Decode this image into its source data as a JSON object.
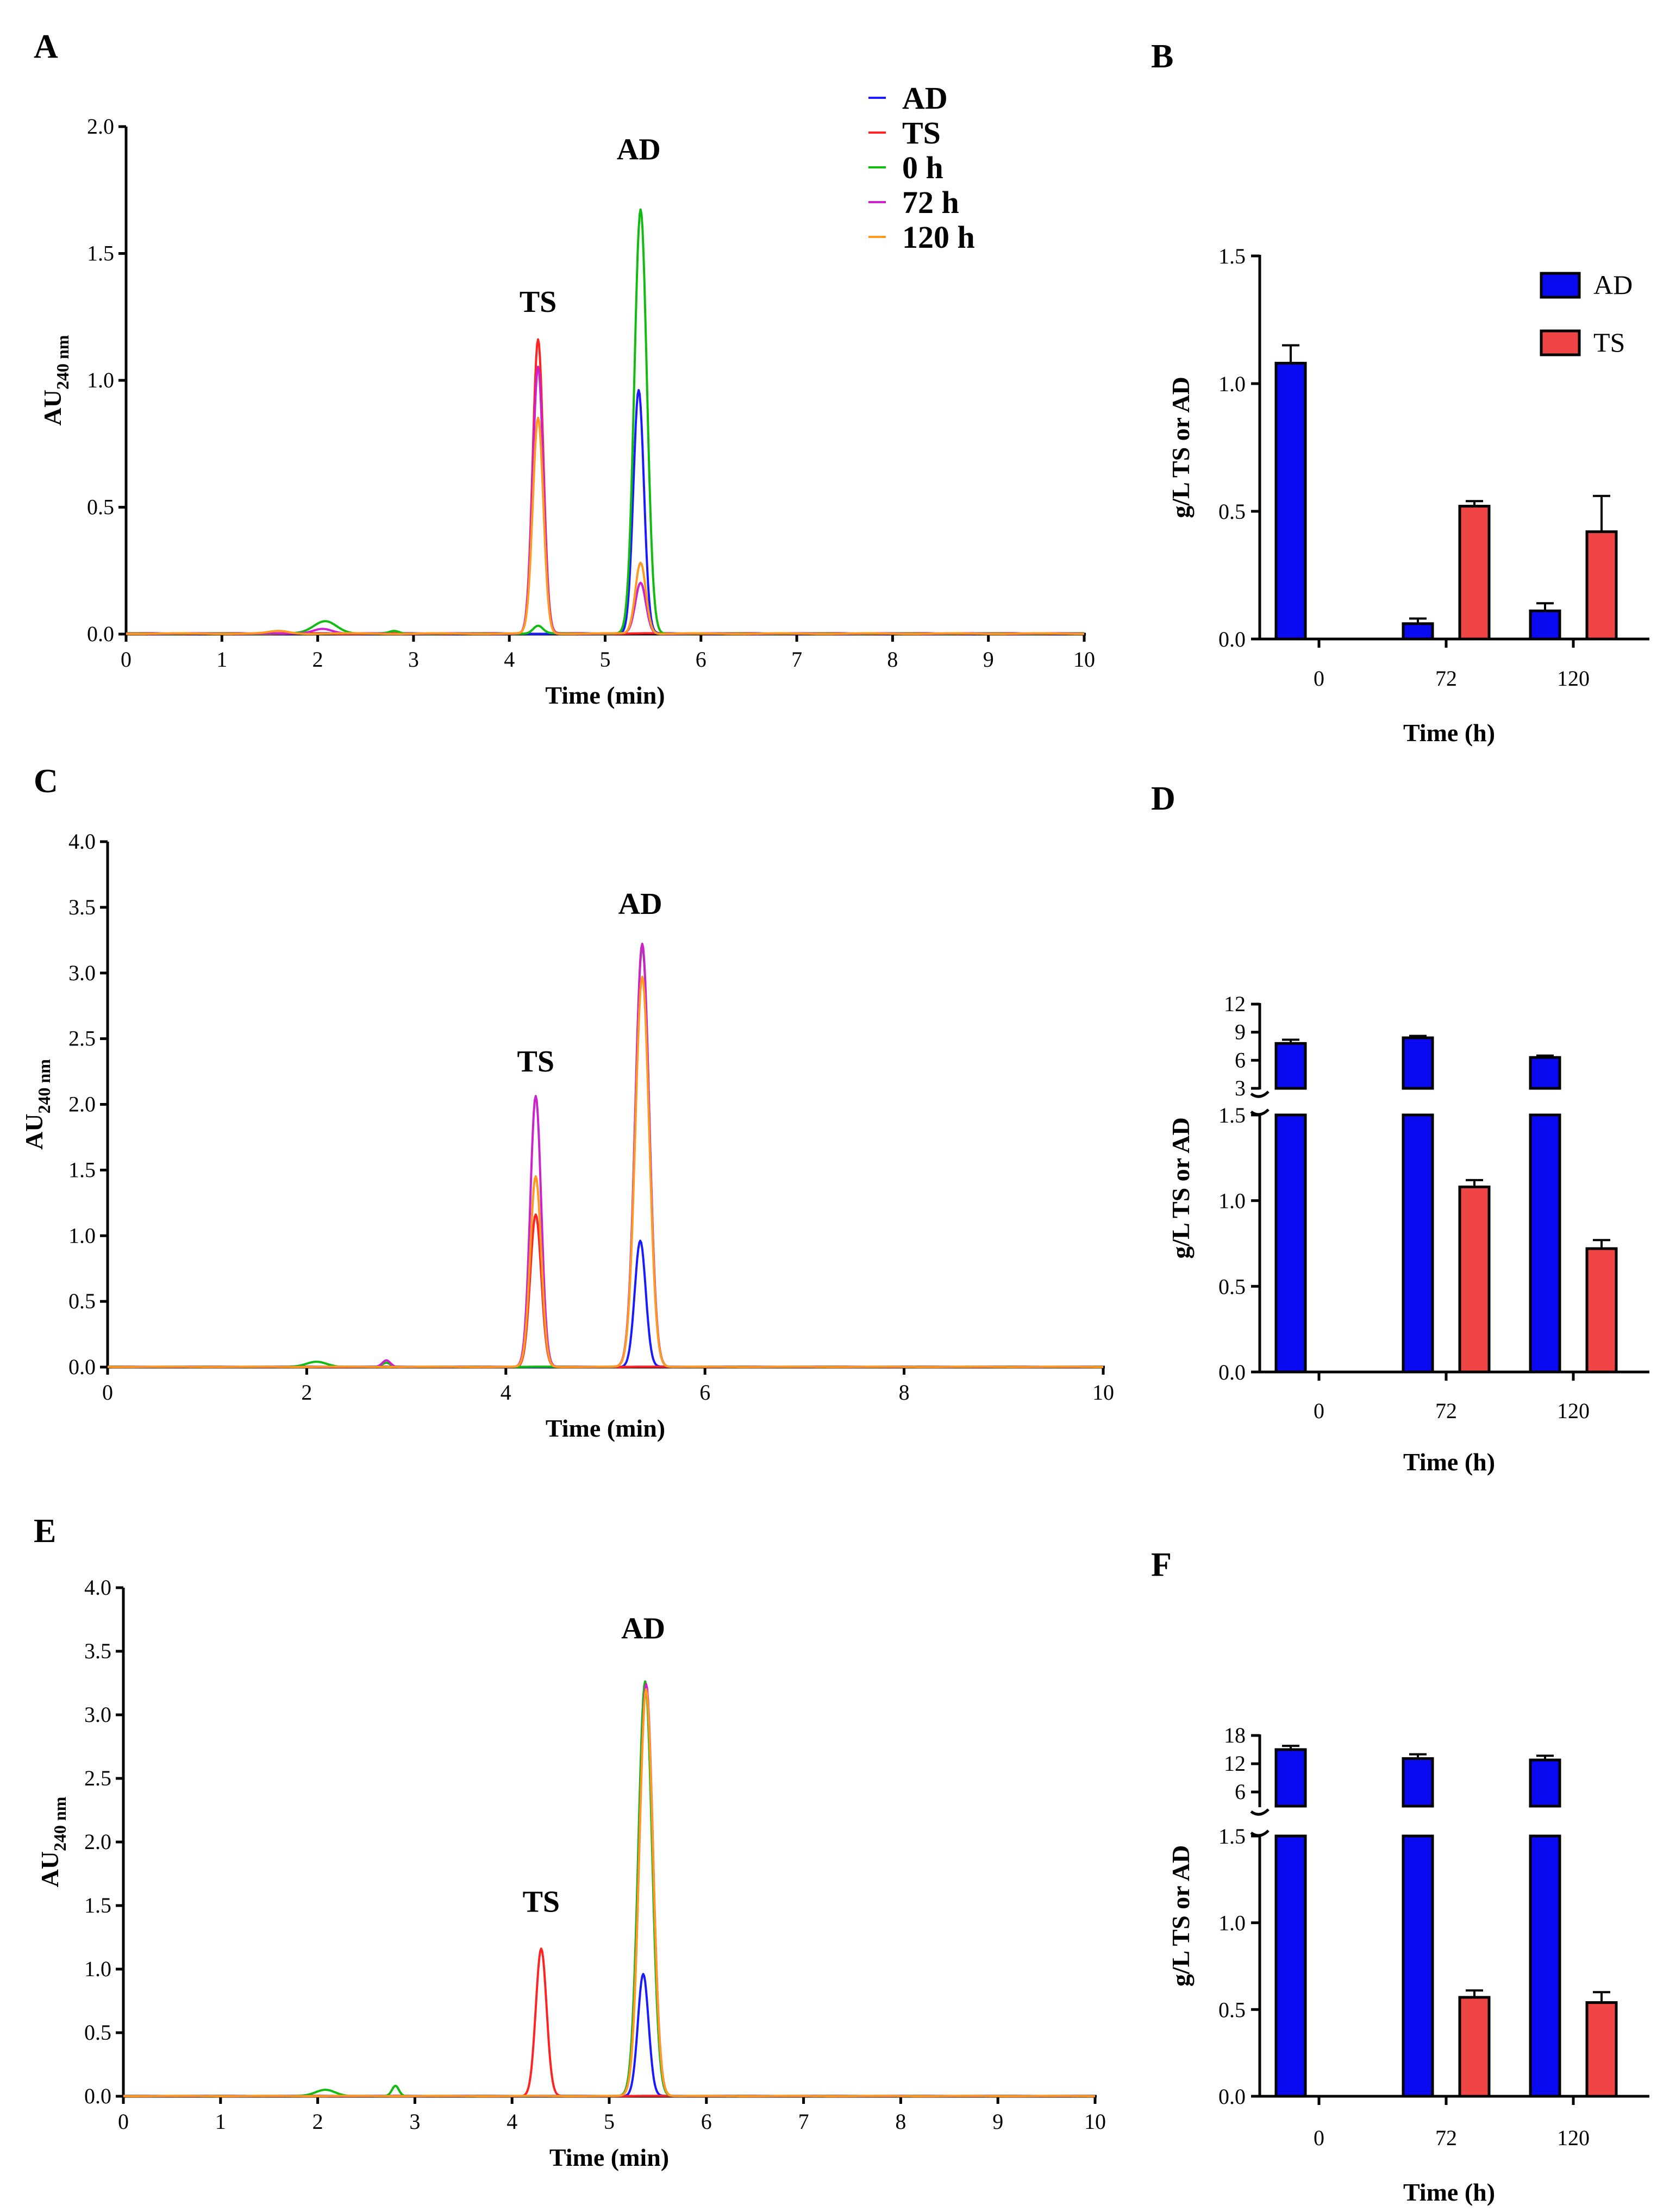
{
  "colors": {
    "AD": "#1a1aff",
    "TS": "#ff2222",
    "h0": "#11bb11",
    "h72": "#cc22cc",
    "h120": "#ff9922",
    "bar_AD": "#0a0af0",
    "bar_TS": "#f04545"
  },
  "chart_data": [
    {
      "panel": "A",
      "type": "line",
      "xlabel": "Time (min)",
      "ylabel": "AU",
      "ylabel_sub": "240 nm",
      "xlim": [
        0,
        10
      ],
      "ylim": [
        0,
        2.0
      ],
      "xticks": [
        "0",
        "1",
        "2",
        "3",
        "4",
        "5",
        "6",
        "7",
        "8",
        "9",
        "10"
      ],
      "yticks": [
        "0.0",
        "0.5",
        "1.0",
        "1.5",
        "2.0"
      ],
      "annotations": [
        {
          "text": "TS",
          "x": 4.3,
          "y": 1.27
        },
        {
          "text": "AD",
          "x": 5.35,
          "y": 1.87
        }
      ],
      "legend": [
        "AD",
        "TS",
        "0 h",
        "72 h",
        "120 h"
      ],
      "series": [
        {
          "name": "AD",
          "color_key": "AD",
          "peaks": [
            [
              5.35,
              0.96,
              0.055
            ]
          ]
        },
        {
          "name": "TS",
          "color_key": "TS",
          "peaks": [
            [
              4.3,
              1.16,
              0.055
            ]
          ]
        },
        {
          "name": "0 h",
          "color_key": "h0",
          "peaks": [
            [
              2.08,
              0.05,
              0.12
            ],
            [
              4.3,
              0.03,
              0.05
            ],
            [
              5.37,
              1.67,
              0.065
            ],
            [
              2.8,
              0.01,
              0.05
            ]
          ]
        },
        {
          "name": "72 h",
          "color_key": "h72",
          "peaks": [
            [
              4.3,
              1.05,
              0.055
            ],
            [
              5.37,
              0.2,
              0.055
            ],
            [
              2.05,
              0.02,
              0.1
            ]
          ]
        },
        {
          "name": "120 h",
          "color_key": "h120",
          "peaks": [
            [
              4.3,
              0.85,
              0.055
            ],
            [
              5.37,
              0.28,
              0.055
            ],
            [
              1.6,
              0.01,
              0.1
            ]
          ]
        }
      ]
    },
    {
      "panel": "B",
      "type": "bar",
      "xlabel": "Time (h)",
      "ylabel": "g/L TS or AD",
      "categories": [
        "0",
        "72",
        "120"
      ],
      "ylim": [
        0,
        1.5
      ],
      "yticks": [
        "0.0",
        "0.5",
        "1.0",
        "1.5"
      ],
      "legend": [
        "AD",
        "TS"
      ],
      "series": [
        {
          "name": "AD",
          "values": [
            1.08,
            0.06,
            0.11
          ],
          "errors": [
            0.07,
            0.02,
            0.03
          ]
        },
        {
          "name": "TS",
          "values": [
            0.0,
            0.52,
            0.42
          ],
          "errors": [
            0.0,
            0.02,
            0.14
          ]
        }
      ]
    },
    {
      "panel": "C",
      "type": "line",
      "xlabel": "Time (min)",
      "ylabel": "AU",
      "ylabel_sub": "240 nm",
      "xlim": [
        0,
        10
      ],
      "ylim": [
        0,
        4.0
      ],
      "xticks": [
        "0",
        "2",
        "4",
        "6",
        "8",
        "10"
      ],
      "yticks": [
        "0.0",
        "0.5",
        "1.0",
        "1.5",
        "2.0",
        "2.5",
        "3.0",
        "3.5",
        "4.0"
      ],
      "annotations": [
        {
          "text": "TS",
          "x": 4.3,
          "y": 2.25
        },
        {
          "text": "AD",
          "x": 5.35,
          "y": 3.45
        }
      ],
      "series": [
        {
          "name": "AD",
          "color_key": "AD",
          "peaks": [
            [
              5.35,
              0.96,
              0.055
            ]
          ]
        },
        {
          "name": "TS",
          "color_key": "TS",
          "peaks": [
            [
              4.3,
              1.16,
              0.055
            ]
          ]
        },
        {
          "name": "0 h",
          "color_key": "h0",
          "peaks": [
            [
              2.1,
              0.04,
              0.1
            ],
            [
              5.37,
              3.2,
              0.07
            ],
            [
              2.8,
              0.03,
              0.04
            ]
          ]
        },
        {
          "name": "72 h",
          "color_key": "h72",
          "peaks": [
            [
              4.3,
              2.06,
              0.055
            ],
            [
              5.37,
              3.22,
              0.07
            ],
            [
              2.8,
              0.05,
              0.04
            ]
          ]
        },
        {
          "name": "120 h",
          "color_key": "h120",
          "peaks": [
            [
              4.3,
              1.45,
              0.055
            ],
            [
              5.37,
              2.97,
              0.07
            ]
          ]
        }
      ]
    },
    {
      "panel": "D",
      "type": "bar",
      "xlabel": "Time (h)",
      "ylabel": "g/L TS or AD",
      "categories": [
        "0",
        "72",
        "120"
      ],
      "ylim_lower": [
        0,
        1.5
      ],
      "ylim_upper": [
        3,
        12
      ],
      "yticks_lower": [
        "0.0",
        "0.5",
        "1.0",
        "1.5"
      ],
      "yticks_upper": [
        "3",
        "6",
        "9",
        "12"
      ],
      "series": [
        {
          "name": "AD",
          "values": [
            7.8,
            8.4,
            6.3
          ],
          "errors": [
            0.4,
            0.2,
            0.2
          ]
        },
        {
          "name": "TS",
          "values": [
            0.0,
            1.08,
            0.72
          ],
          "errors": [
            0.0,
            0.04,
            0.05
          ]
        }
      ]
    },
    {
      "panel": "E",
      "type": "line",
      "xlabel": "Time (min)",
      "ylabel": "AU",
      "ylabel_sub": "240 nm",
      "xlim": [
        0,
        10
      ],
      "ylim": [
        0,
        4.0
      ],
      "xticks": [
        "0",
        "1",
        "2",
        "3",
        "4",
        "5",
        "6",
        "7",
        "8",
        "9",
        "10"
      ],
      "yticks": [
        "0.0",
        "0.5",
        "1.0",
        "1.5",
        "2.0",
        "2.5",
        "3.0",
        "3.5",
        "4.0"
      ],
      "annotations": [
        {
          "text": "TS",
          "x": 4.3,
          "y": 1.45
        },
        {
          "text": "AD",
          "x": 5.35,
          "y": 3.6
        }
      ],
      "series": [
        {
          "name": "AD",
          "color_key": "AD",
          "peaks": [
            [
              5.35,
              0.96,
              0.055
            ]
          ]
        },
        {
          "name": "TS",
          "color_key": "TS",
          "peaks": [
            [
              4.3,
              1.16,
              0.055
            ]
          ]
        },
        {
          "name": "0 h",
          "color_key": "h0",
          "peaks": [
            [
              2.08,
              0.05,
              0.1
            ],
            [
              2.8,
              0.08,
              0.035
            ],
            [
              5.37,
              3.26,
              0.07
            ]
          ]
        },
        {
          "name": "72 h",
          "color_key": "h72",
          "peaks": [
            [
              5.38,
              3.24,
              0.07
            ]
          ]
        },
        {
          "name": "120 h",
          "color_key": "h120",
          "peaks": [
            [
              5.38,
              3.2,
              0.07
            ]
          ]
        }
      ]
    },
    {
      "panel": "F",
      "type": "bar",
      "xlabel": "Time (h)",
      "ylabel": "g/L TS or AD",
      "categories": [
        "0",
        "72",
        "120"
      ],
      "ylim_lower": [
        0,
        1.5
      ],
      "ylim_upper": [
        3,
        18
      ],
      "yticks_lower": [
        "0.0",
        "0.5",
        "1.0",
        "1.5"
      ],
      "yticks_upper": [
        "6",
        "12",
        "18"
      ],
      "series": [
        {
          "name": "AD",
          "values": [
            15.0,
            13.1,
            12.8
          ],
          "errors": [
            0.8,
            0.9,
            0.9
          ]
        },
        {
          "name": "TS",
          "values": [
            0.0,
            0.57,
            0.54
          ],
          "errors": [
            0.0,
            0.04,
            0.06
          ]
        }
      ]
    }
  ]
}
